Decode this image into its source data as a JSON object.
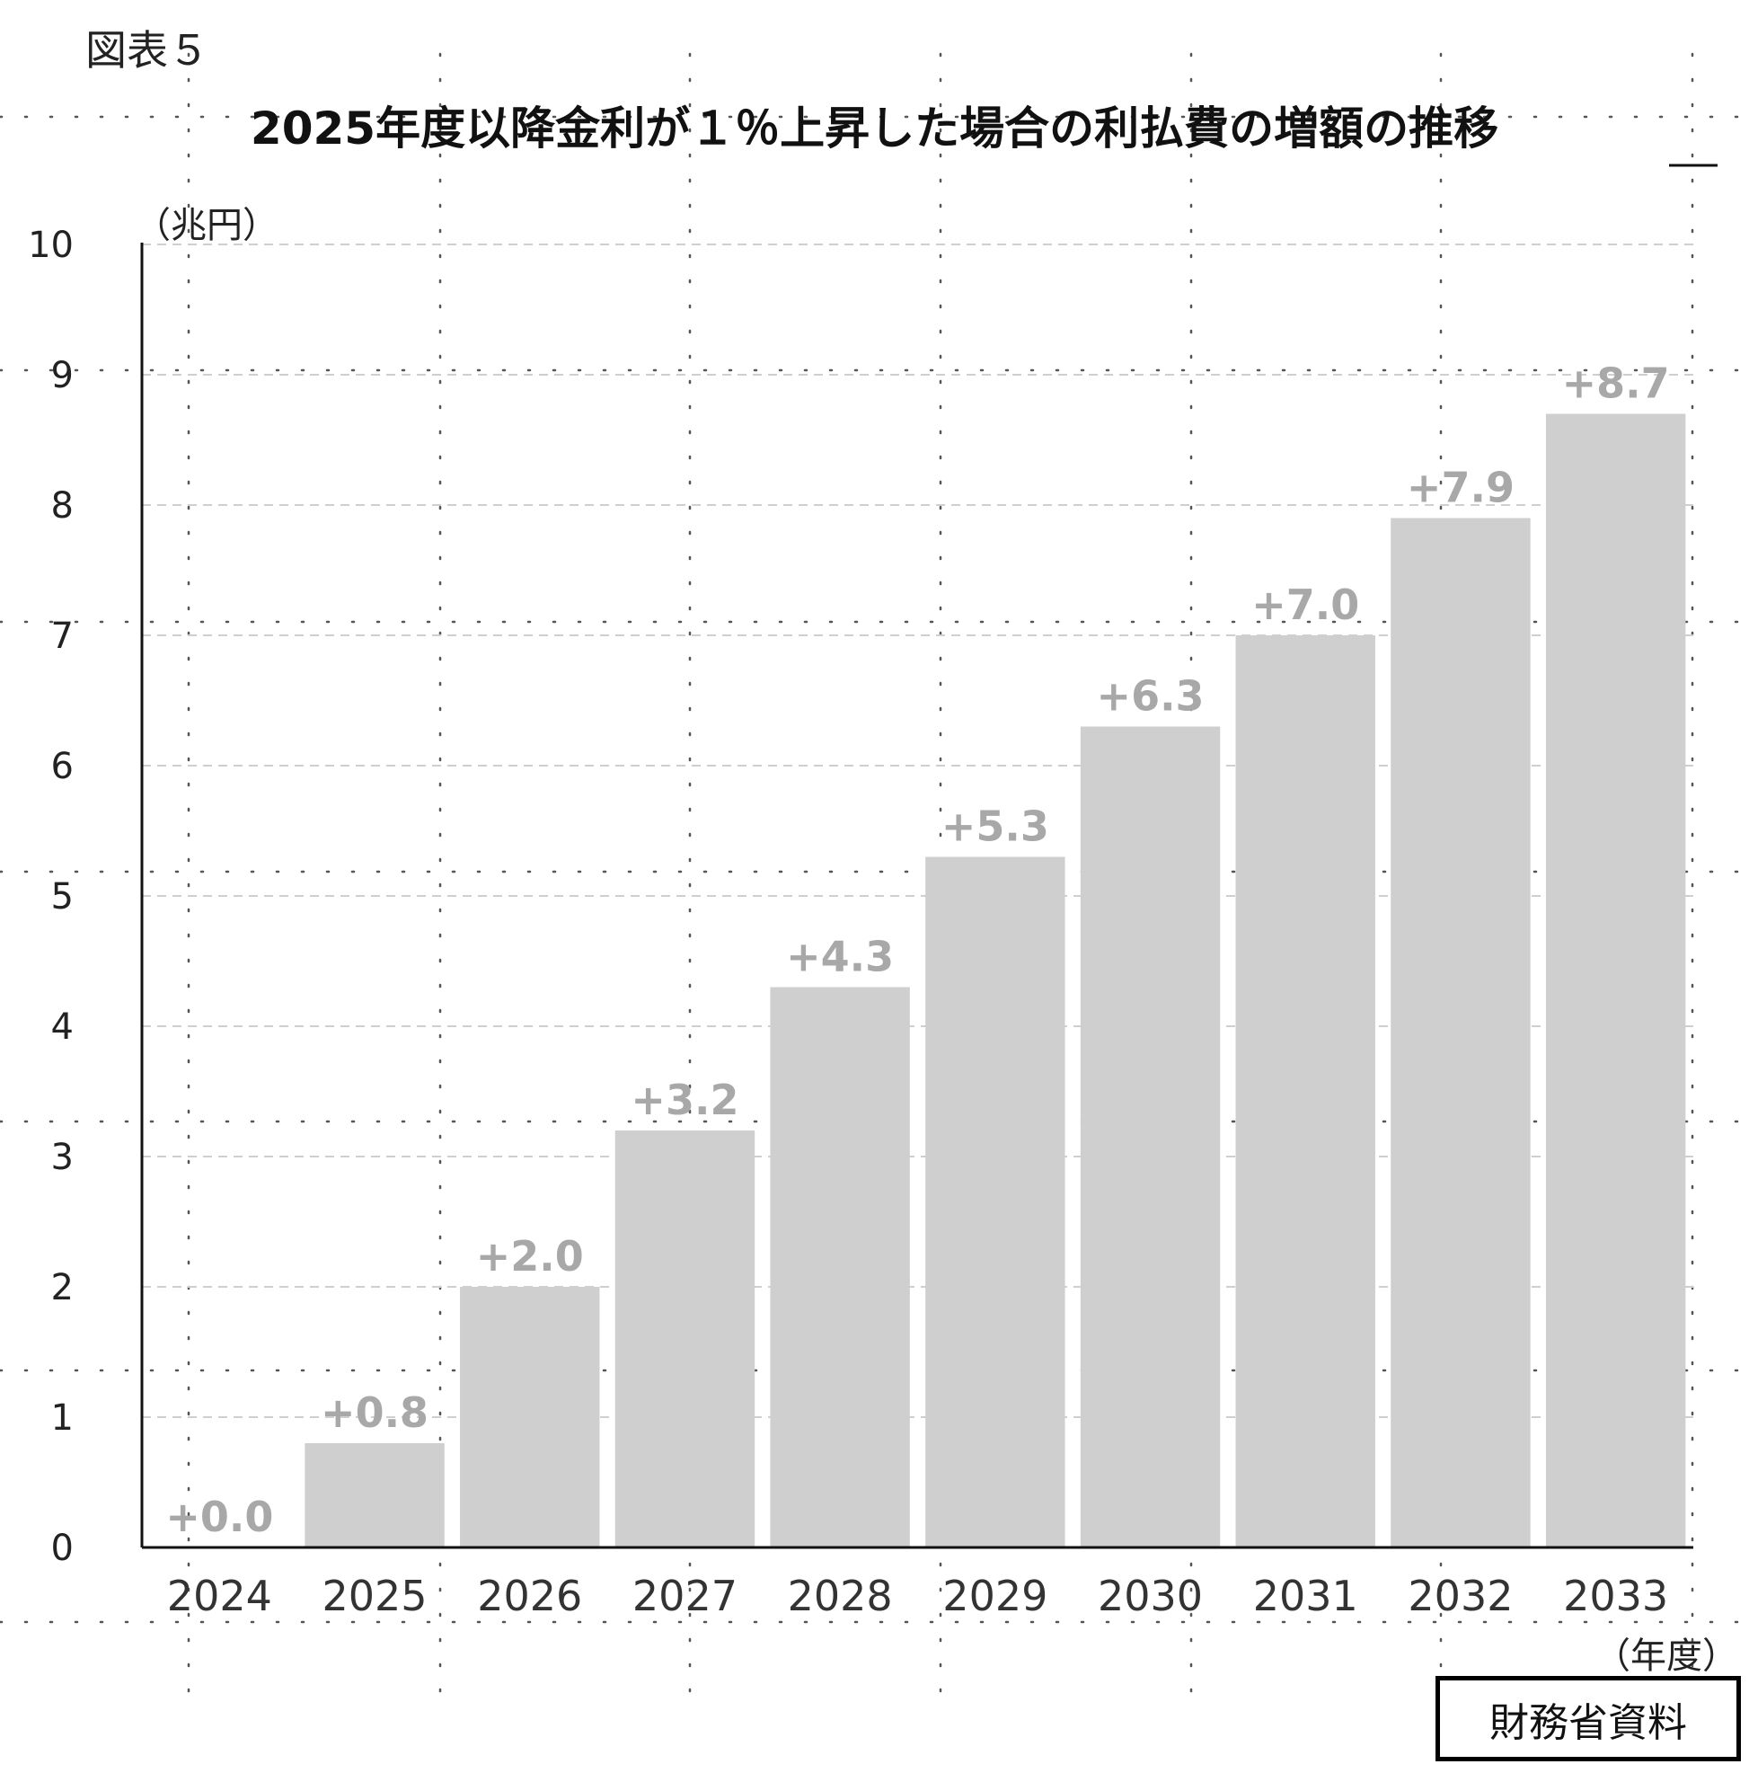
{
  "figure_label": "図表５",
  "source": "財務省資料",
  "chart_data": {
    "type": "bar",
    "title": "2025年度以降金利が１％上昇した場合の利払費の増額の推移",
    "ylabel": "（兆円）",
    "xlabel": "（年度）",
    "ylim": [
      0,
      10
    ],
    "yticks": [
      0,
      1,
      2,
      3,
      4,
      5,
      6,
      7,
      8,
      9,
      10
    ],
    "grid": true,
    "categories": [
      "2024",
      "2025",
      "2026",
      "2027",
      "2028",
      "2029",
      "2030",
      "2031",
      "2032",
      "2033"
    ],
    "values": [
      0.0,
      0.8,
      2.0,
      3.2,
      4.3,
      5.3,
      6.3,
      7.0,
      7.9,
      8.7
    ],
    "data_labels": [
      "+0.0",
      "+0.8",
      "+2.0",
      "+3.2",
      "+4.3",
      "+5.3",
      "+6.3",
      "+7.0",
      "+7.9",
      "+8.7"
    ],
    "bar_color": "#d0cfcf",
    "label_color": "#a8a8a8"
  }
}
